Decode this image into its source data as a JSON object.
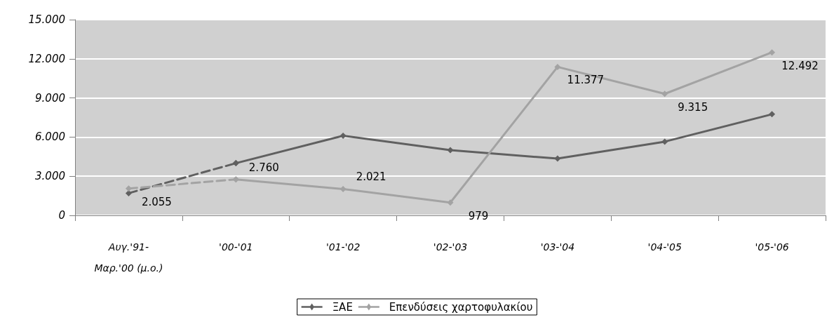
{
  "chart_data": {
    "type": "line",
    "categories": [
      "Αυγ.'91-\nΜαρ.'00 (μ.ο.)",
      "'00-'01",
      "'01-'02",
      "'02-'03",
      "'03-'04",
      "'04-'05",
      "'05-'06"
    ],
    "series": [
      {
        "color": "#606060",
        "line_style": "dashed",
        "values": [
          1700,
          4000,
          null,
          null,
          null,
          null,
          null
        ]
      },
      {
        "name": "ΞΑΕ",
        "color": "#606060",
        "line_style": "solid",
        "values": [
          null,
          4000,
          6100,
          5000,
          4350,
          5650,
          7750
        ]
      },
      {
        "color": "#a3a3a3",
        "line_style": "dashed",
        "values": [
          2055,
          2760,
          null,
          null,
          null,
          null,
          null
        ],
        "value_labels": [
          "2.055",
          null,
          null,
          null,
          null,
          null,
          null
        ]
      },
      {
        "name": "Επενδύσεις χαρτοφυλακίου",
        "color": "#a3a3a3",
        "line_style": "solid",
        "values": [
          null,
          2760,
          2021,
          979,
          11377,
          9315,
          12492
        ],
        "value_labels": [
          null,
          "2.760",
          "2.021",
          "979",
          "11.377",
          "9.315",
          "12.492"
        ]
      }
    ],
    "ylim": [
      0,
      15000
    ],
    "yticks": [
      {
        "value": 0,
        "label": "0"
      },
      {
        "value": 3000,
        "label": "3.000"
      },
      {
        "value": 6000,
        "label": "6.000"
      },
      {
        "value": 9000,
        "label": "9.000"
      },
      {
        "value": 12000,
        "label": "12.000"
      },
      {
        "value": 15000,
        "label": "15.000"
      }
    ],
    "grid": "y",
    "legend": "bottom",
    "marker": "diamond"
  }
}
